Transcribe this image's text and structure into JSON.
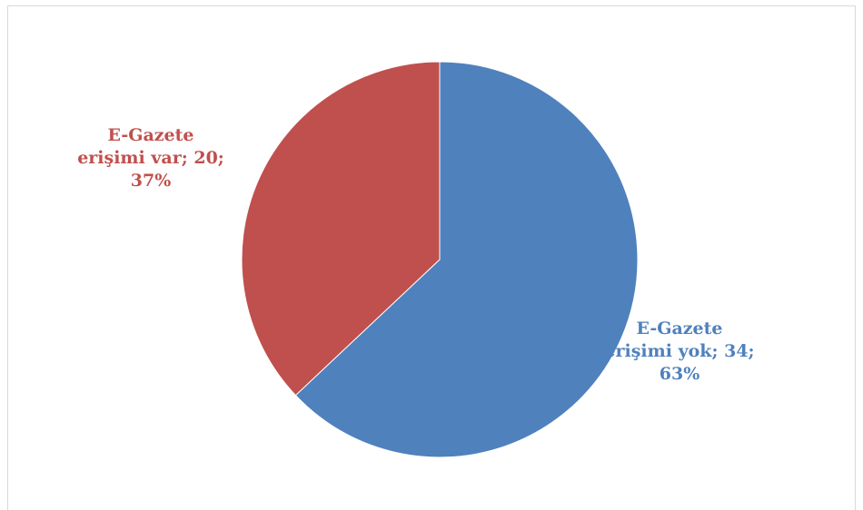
{
  "chart_data": {
    "type": "pie",
    "slices": [
      {
        "line1": "E-Gazete",
        "line2": "erişimi yok; 34;",
        "line3": "63%",
        "value": 34,
        "percent": 63,
        "color": "#4f81bd"
      },
      {
        "line1": "E-Gazete",
        "line2": "erişimi var; 20;",
        "line3": "37%",
        "value": 20,
        "percent": 37,
        "color": "#c0504d"
      }
    ],
    "start_angle_deg": 0,
    "direction": "clockwise"
  }
}
